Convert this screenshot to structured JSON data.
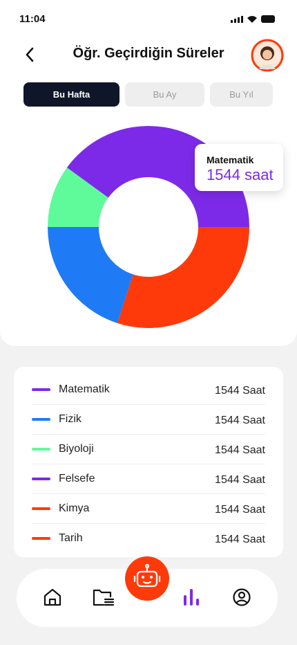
{
  "status_bar": {
    "time": "11:04"
  },
  "header": {
    "title": "Öğr. Geçirdiğin Süreler"
  },
  "tabs": [
    "Bu Hafta",
    "Bu Ay",
    "Bu Yıl"
  ],
  "chart_data": {
    "type": "pie",
    "values": [
      40,
      10,
      20,
      30
    ],
    "colors": [
      "#7d2ae8",
      "#5ffb9a",
      "#1e7bf5",
      "#ff3a0a"
    ],
    "tooltip": {
      "label": "Matematik",
      "value": "1544 saat"
    }
  },
  "list": {
    "items": [
      {
        "name": "Matematik",
        "value": "1544 Saat",
        "color": "#7d2ae8"
      },
      {
        "name": "Fizik",
        "value": "1544 Saat",
        "color": "#1e7bf5"
      },
      {
        "name": "Biyoloji",
        "value": "1544 Saat",
        "color": "#5ffb9a"
      },
      {
        "name": "Felsefe",
        "value": "1544 Saat",
        "color": "#7d2ae8"
      },
      {
        "name": "Kimya",
        "value": "1544 Saat",
        "color": "#ff3a0a"
      },
      {
        "name": "Tarih",
        "value": "1544 Saat",
        "color": "#ff3a0a"
      }
    ]
  }
}
